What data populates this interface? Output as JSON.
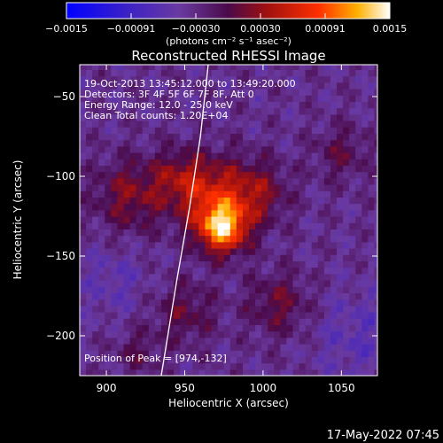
{
  "chart_data": {
    "type": "heatmap",
    "title": "Reconstructed RHESSI Image",
    "xlabel": "Heliocentric X (arcsec)",
    "ylabel": "Heliocentric Y (arcsec)",
    "xlim": [
      883,
      1073
    ],
    "ylim": [
      -225,
      -30
    ],
    "xticks": [
      900,
      950,
      1000,
      1050
    ],
    "yticks": [
      -50,
      -100,
      -150,
      -200
    ],
    "colorbar": {
      "label": "(photons cm⁻² s⁻¹ asec⁻²)",
      "range": [
        -0.0015,
        0.0015
      ],
      "ticks": [
        "-0.0015",
        "-0.00091",
        "-0.00030",
        "0.00030",
        "0.00091",
        "0.0015"
      ]
    },
    "annotations": [
      "19-Oct-2013 13:45:12.000 to 13:49:20.000",
      "Detectors: 3F 4F 5F 6F 7F 8F, Att 0",
      "Energy Range: 12.0 - 25.0 keV",
      "Clean     Total counts: 1.20E+04"
    ],
    "peak_label": "Position of Peak = [974,-132]",
    "peak": [
      974,
      -132
    ],
    "sources": [
      {
        "x": 974,
        "y": -132,
        "amp": 0.0015,
        "sigma": 11
      },
      {
        "x": 965,
        "y": -110,
        "amp": 0.00075,
        "sigma": 16
      },
      {
        "x": 995,
        "y": -110,
        "amp": 0.0006,
        "sigma": 14
      },
      {
        "x": 915,
        "y": -112,
        "amp": 0.00055,
        "sigma": 16
      },
      {
        "x": 945,
        "y": -100,
        "amp": 0.0004,
        "sigma": 12
      },
      {
        "x": 1010,
        "y": -180,
        "amp": 0.00045,
        "sigma": 14
      },
      {
        "x": 950,
        "y": -185,
        "amp": 0.0004,
        "sigma": 14
      },
      {
        "x": 1050,
        "y": -85,
        "amp": 0.00035,
        "sigma": 12
      },
      {
        "x": 920,
        "y": -210,
        "amp": 0.0003,
        "sigma": 10
      },
      {
        "x": 1060,
        "y": -200,
        "amp": -0.00025,
        "sigma": 20
      },
      {
        "x": 905,
        "y": -165,
        "amp": -0.00022,
        "sigma": 16
      }
    ],
    "limb_curve": [
      [
        965,
        -30
      ],
      [
        960,
        -75
      ],
      [
        953,
        -120
      ],
      [
        945,
        -165
      ],
      [
        935,
        -225
      ]
    ]
  },
  "timestamp": "17-May-2022 07:45"
}
